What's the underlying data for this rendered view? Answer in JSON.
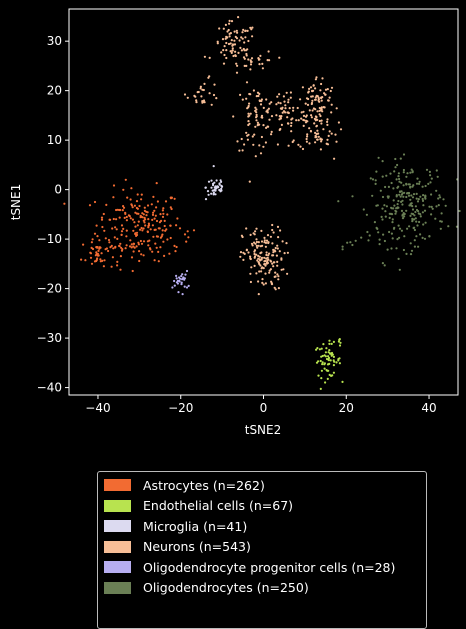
{
  "chart_data": {
    "type": "scatter",
    "xlabel": "tSNE2",
    "ylabel": "tSNE1",
    "xlim": [
      -47,
      47
    ],
    "ylim": [
      -41.5,
      36.5
    ],
    "xticks": [
      -40,
      -20,
      0,
      20,
      40
    ],
    "yticks": [
      -40,
      -30,
      -20,
      -10,
      0,
      10,
      20,
      30
    ],
    "grid": false,
    "legend_placement": "bottom-center",
    "series": [
      {
        "name": "Astrocytes (n=262)",
        "color": "#f26b32",
        "n": 262,
        "clusters": [
          {
            "center": [
              -30,
              -7
            ],
            "spread": [
              5.2,
              3.6
            ],
            "n": 195
          },
          {
            "center": [
              -40,
              -13
            ],
            "spread": [
              2.0,
              1.6
            ],
            "n": 42
          },
          {
            "center": [
              -27,
              -11
            ],
            "spread": [
              5.0,
              1.6
            ],
            "n": 25
          }
        ]
      },
      {
        "name": "Endothelial cells (n=67)",
        "color": "#b8e34f",
        "n": 67,
        "clusters": [
          {
            "center": [
              15.5,
              -34.5
            ],
            "spread": [
              1.6,
              1.7
            ],
            "n": 62
          },
          {
            "center": [
              18.5,
              -31.5
            ],
            "spread": [
              0.5,
              0.8
            ],
            "n": 5
          }
        ]
      },
      {
        "name": "Microglia (n=41)",
        "color": "#dcdaf0",
        "n": 41,
        "clusters": [
          {
            "center": [
              -11.5,
              0.5
            ],
            "spread": [
              1.2,
              1.3
            ],
            "n": 41
          }
        ]
      },
      {
        "name": "Neurons (n=543)",
        "color": "#f7be97",
        "n": 543,
        "clusters": [
          {
            "center": [
              -7,
              29
            ],
            "spread": [
              2.7,
              2.4
            ],
            "n": 80
          },
          {
            "center": [
              -1,
              26
            ],
            "spread": [
              2.0,
              1.0
            ],
            "n": 20
          },
          {
            "center": [
              -14.5,
              19.5
            ],
            "spread": [
              2.0,
              1.3
            ],
            "n": 25
          },
          {
            "center": [
              -2,
              14.5
            ],
            "spread": [
              2.3,
              3.2
            ],
            "n": 70
          },
          {
            "center": [
              5,
              15
            ],
            "spread": [
              3.2,
              2.8
            ],
            "n": 60
          },
          {
            "center": [
              13,
              18
            ],
            "spread": [
              2.2,
              2.5
            ],
            "n": 75
          },
          {
            "center": [
              13,
              12
            ],
            "spread": [
              2.4,
              2.0
            ],
            "n": 55
          },
          {
            "center": [
              0,
              -14
            ],
            "spread": [
              2.5,
              3.2
            ],
            "n": 150
          },
          {
            "center": [
              4,
              16
            ],
            "spread": [
              10,
              7
            ],
            "n": 8
          }
        ]
      },
      {
        "name": "Oligodendrocyte progenitor cells (n=28)",
        "color": "#b7aef0",
        "n": 28,
        "clusters": [
          {
            "center": [
              -20,
              -18.5
            ],
            "spread": [
              0.9,
              1.0
            ],
            "n": 28
          }
        ]
      },
      {
        "name": "Oligodendrocytes (n=250)",
        "color": "#6a7f55",
        "n": 250,
        "clusters": [
          {
            "center": [
              35,
              -3
            ],
            "spread": [
              4.5,
              4.2
            ],
            "n": 230
          },
          {
            "center": [
              28,
              -7.5
            ],
            "spread": [
              2.2,
              1.8
            ],
            "n": 15
          },
          {
            "center": [
              19.5,
              -11.5
            ],
            "spread": [
              1.0,
              0.8
            ],
            "n": 5
          }
        ]
      }
    ]
  }
}
